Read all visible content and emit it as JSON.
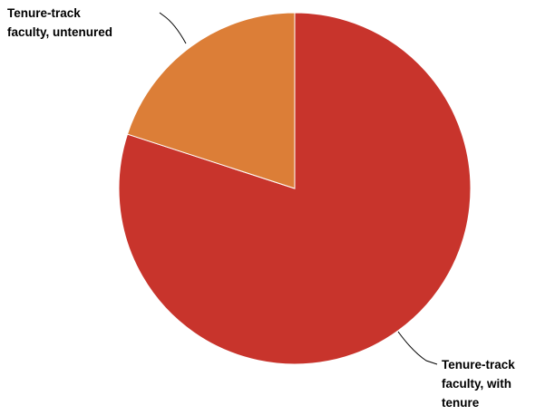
{
  "chart_data": {
    "type": "pie",
    "start_angle": "top, clockwise",
    "legend": "none",
    "slices": [
      {
        "name": "Tenure-track faculty, with tenure",
        "label_lines": [
          "Tenure-track",
          "faculty, with",
          "tenure"
        ],
        "value": 80,
        "color": "#c8342c"
      },
      {
        "name": "Tenure-track faculty, untenured",
        "label_lines": [
          "Tenure-track",
          "faculty, untenured"
        ],
        "value": 20,
        "color": "#dc7e37"
      }
    ]
  }
}
